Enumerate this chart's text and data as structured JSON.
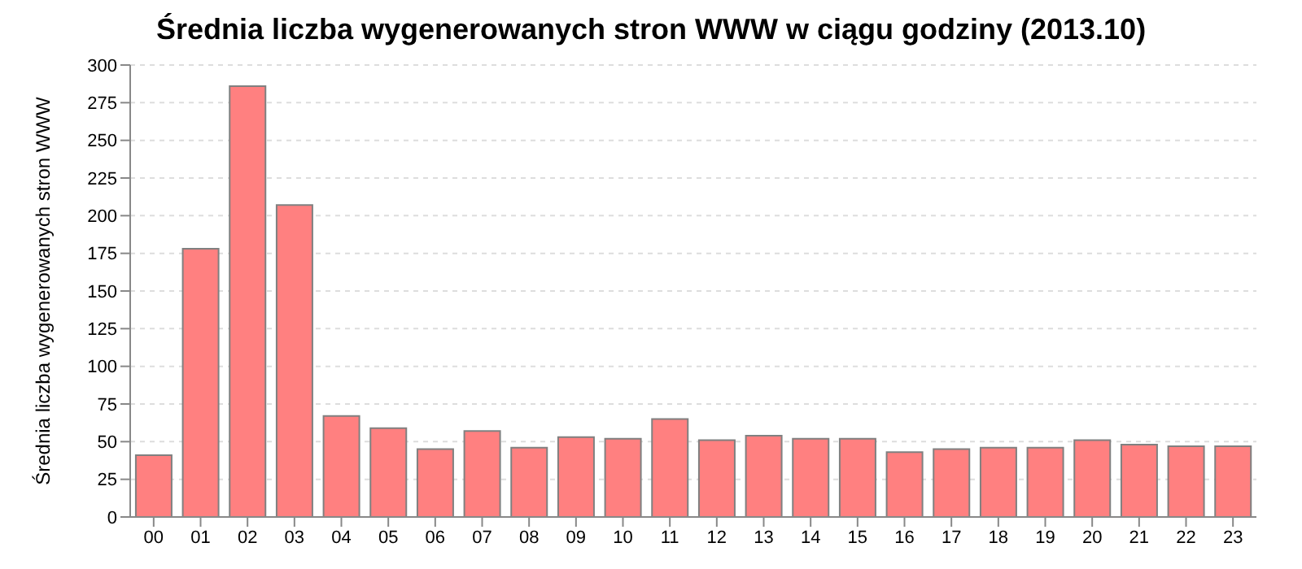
{
  "chart_data": {
    "type": "bar",
    "title": "Średnia liczba wygenerowanych stron WWW w ciągu godziny (2013.10)",
    "ylabel": "Średnia liczba wygenerowanych stron WWW",
    "categories": [
      "00",
      "01",
      "02",
      "03",
      "04",
      "05",
      "06",
      "07",
      "08",
      "09",
      "10",
      "11",
      "12",
      "13",
      "14",
      "15",
      "16",
      "17",
      "18",
      "19",
      "20",
      "21",
      "22",
      "23"
    ],
    "values": [
      41,
      178,
      286,
      207,
      67,
      59,
      45,
      57,
      46,
      53,
      52,
      65,
      51,
      54,
      52,
      52,
      43,
      45,
      46,
      46,
      51,
      48,
      47,
      47
    ],
    "color": "#ff8080",
    "ylim": [
      0,
      300
    ],
    "yticks": [
      0,
      25,
      50,
      75,
      100,
      125,
      150,
      175,
      200,
      225,
      250,
      275,
      300
    ],
    "grid": "y"
  }
}
